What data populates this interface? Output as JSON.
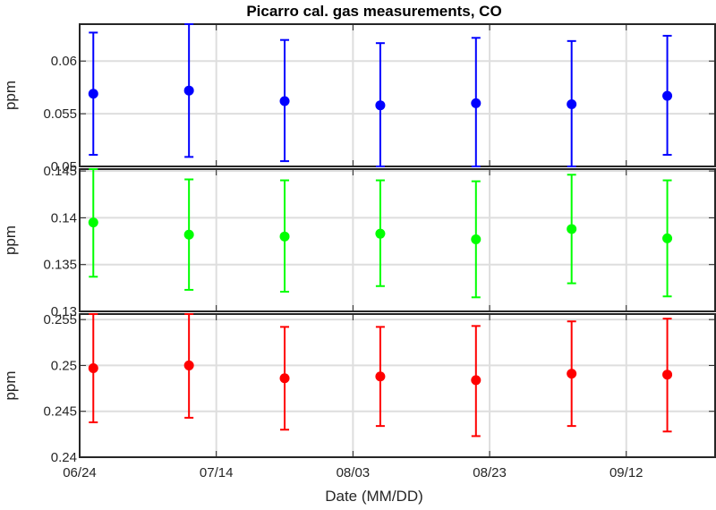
{
  "chart_data": {
    "type": "scatter",
    "title": "Picarro cal. gas measurements, CO",
    "xlabel": "Date (MM/DD)",
    "x_axis": {
      "type": "date",
      "ticks": [
        "06/24",
        "07/14",
        "08/03",
        "08/23",
        "09/12"
      ],
      "tick_dates": [
        "2015-06-24",
        "2015-07-14",
        "2015-08-03",
        "2015-08-23",
        "2015-09-12"
      ],
      "range": [
        "2015-06-24",
        "2015-09-25"
      ]
    },
    "x": [
      "2015-06-26",
      "2015-07-10",
      "2015-07-24",
      "2015-08-07",
      "2015-08-21",
      "2015-09-04",
      "2015-09-18"
    ],
    "grid": true,
    "panels": [
      {
        "ylabel": "ppm",
        "ylim": [
          0.05,
          0.0635
        ],
        "yticks": [
          "0.05",
          "0.055",
          "0.06"
        ],
        "color": "#0000ff",
        "values": [
          0.0569,
          0.0572,
          0.0562,
          0.0558,
          0.056,
          0.0559,
          0.0567
        ],
        "err_low": [
          0.0511,
          0.0509,
          0.0505,
          0.05,
          0.05,
          0.05,
          0.0511
        ],
        "err_high": [
          0.0627,
          0.0635,
          0.062,
          0.0617,
          0.0622,
          0.0619,
          0.0624
        ]
      },
      {
        "ylabel": "ppm",
        "ylim": [
          0.13,
          0.1452
        ],
        "yticks": [
          "0.13",
          "0.135",
          "0.14",
          "0.145"
        ],
        "color": "#00ff00",
        "values": [
          0.1395,
          0.1382,
          0.138,
          0.1383,
          0.1377,
          0.1388,
          0.1378
        ],
        "err_low": [
          0.1337,
          0.1323,
          0.1321,
          0.1327,
          0.1315,
          0.133,
          0.1316
        ],
        "err_high": [
          0.1452,
          0.1441,
          0.144,
          0.144,
          0.1439,
          0.1446,
          0.144
        ]
      },
      {
        "ylabel": "ppm",
        "ylim": [
          0.24,
          0.2556
        ],
        "yticks": [
          "0.24",
          "0.245",
          "0.25",
          "0.255"
        ],
        "color": "#ff0000",
        "values": [
          0.2497,
          0.25,
          0.2486,
          0.2488,
          0.2484,
          0.2491,
          0.249
        ],
        "err_low": [
          0.2438,
          0.2443,
          0.243,
          0.2434,
          0.2423,
          0.2434,
          0.2428
        ],
        "err_high": [
          0.2556,
          0.2556,
          0.2542,
          0.2542,
          0.2543,
          0.2548,
          0.2551
        ]
      }
    ]
  }
}
